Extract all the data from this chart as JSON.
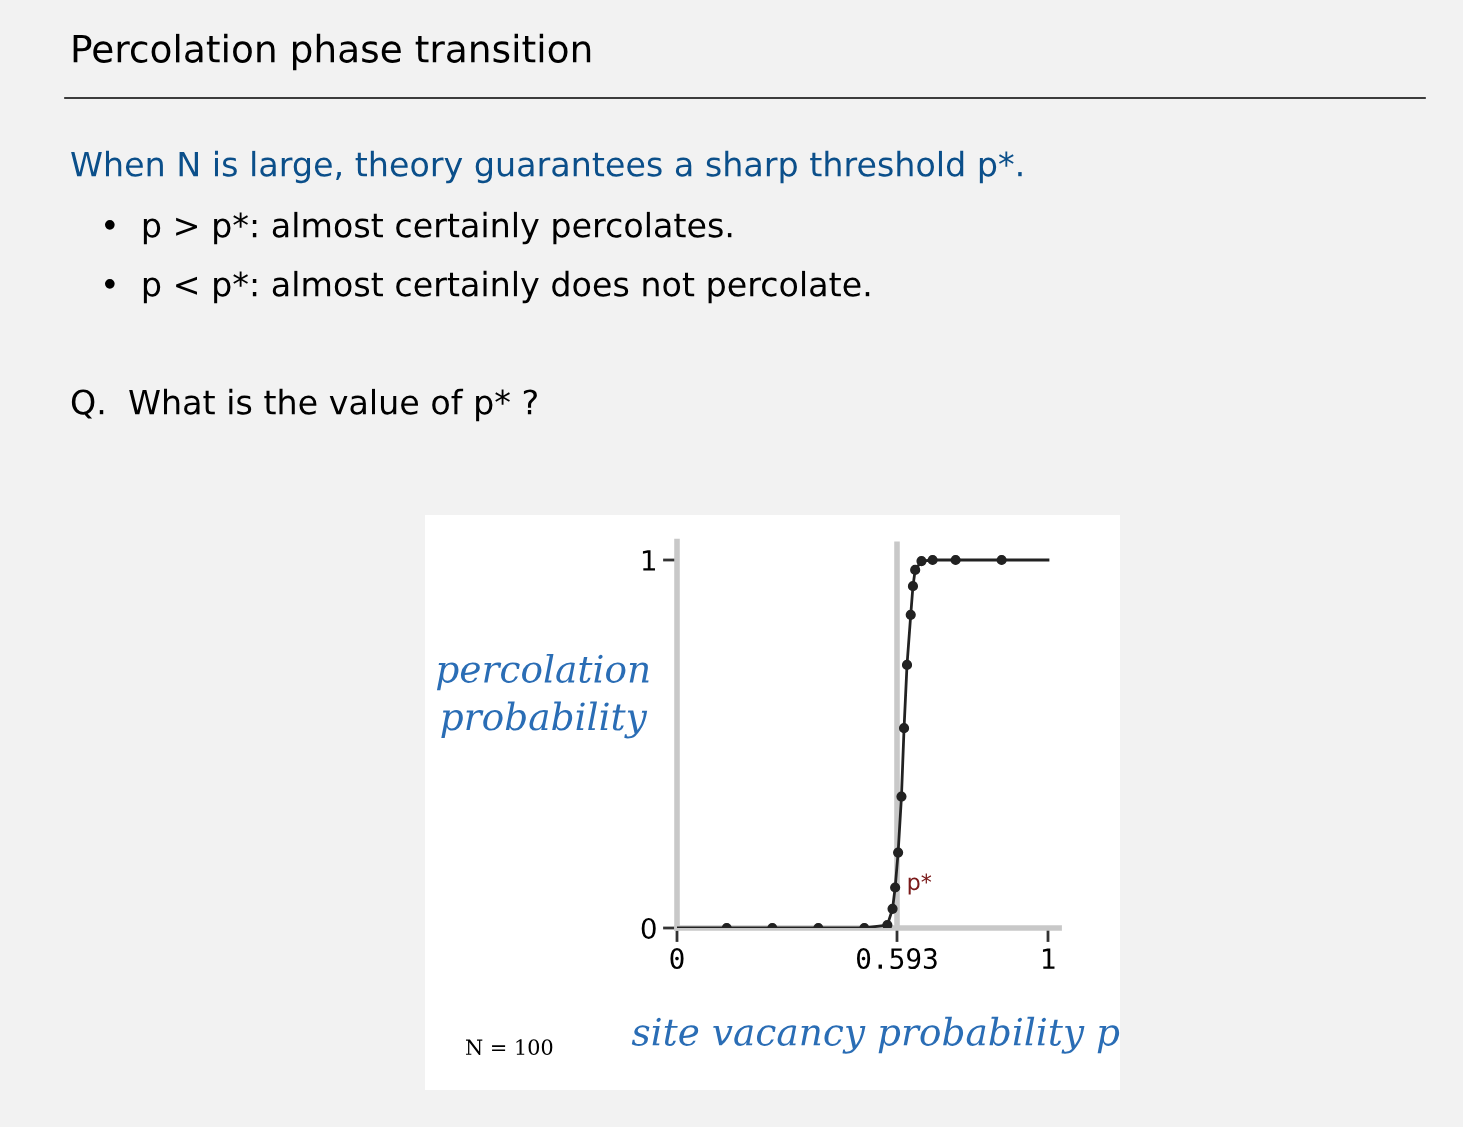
{
  "chart_data": {
    "type": "line",
    "title": "Percolation phase transition",
    "subtitle": "When N is large, theory guarantees a sharp threshold p*.",
    "annotations": [
      "•  p > p*: almost certainly percolates.",
      "•  p < p*: almost certainly does not percolate.",
      "Q.  What is the value of p* ?",
      "N = 100"
    ],
    "xlabel": "site vacancy probability p",
    "ylabel": "percolation\nprobability",
    "series": [
      {
        "type": "line",
        "color": "#222222",
        "marker": "none",
        "x": [
          0,
          0.134,
          0.257,
          0.381,
          0.505,
          0.567,
          0.581,
          0.588,
          0.596,
          0.605,
          0.612,
          0.62,
          0.63,
          0.636,
          0.642,
          0.659,
          0.689,
          0.751,
          0.875,
          1
        ],
        "values": [
          0,
          0,
          0,
          0,
          0,
          0.008,
          0.052,
          0.11,
          0.205,
          0.357,
          0.543,
          0.715,
          0.851,
          0.929,
          0.973,
          0.997,
          1,
          1,
          1,
          1
        ]
      },
      {
        "type": "scatter",
        "color": "#222222",
        "marker": "circle",
        "x": [
          0.134,
          0.257,
          0.381,
          0.505,
          0.567,
          0.581,
          0.588,
          0.596,
          0.605,
          0.612,
          0.62,
          0.63,
          0.636,
          0.642,
          0.659,
          0.689,
          0.751,
          0.875
        ],
        "values": [
          0,
          0,
          0,
          0,
          0.008,
          0.052,
          0.11,
          0.205,
          0.357,
          0.543,
          0.715,
          0.851,
          0.929,
          0.973,
          0.997,
          1,
          1,
          1
        ]
      }
    ],
    "ref_lines": [
      {
        "axis": "x",
        "value": 0.593,
        "label": "p*",
        "color": "#c8c8c8"
      }
    ],
    "xlim": [
      0,
      1.03
    ],
    "ylim": [
      0,
      1.05
    ],
    "xticks": [
      0,
      0.593,
      1
    ],
    "yticks": [
      0,
      1
    ],
    "grid": false,
    "legend": false
  }
}
